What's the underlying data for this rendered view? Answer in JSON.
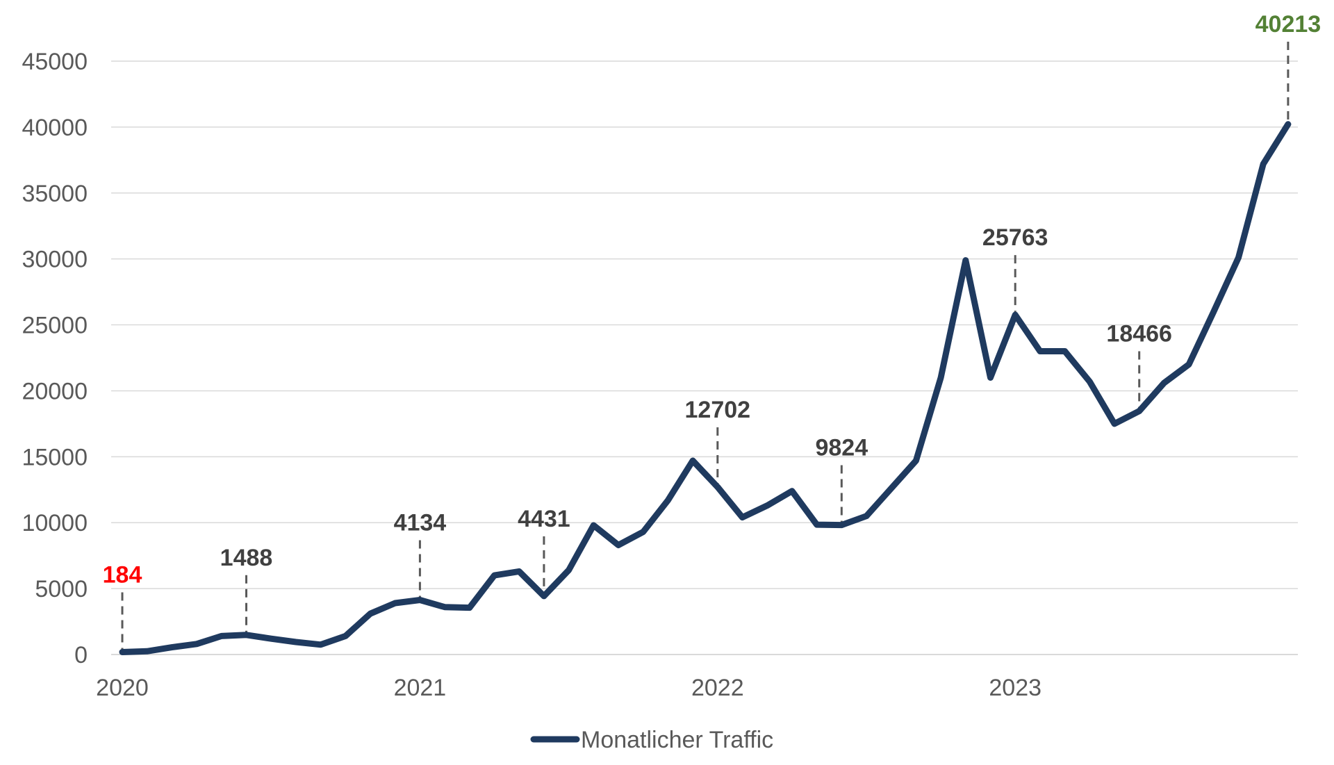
{
  "chart_data": {
    "type": "line",
    "title": "",
    "xlabel": "",
    "ylabel": "",
    "ylim": [
      0,
      45000
    ],
    "y_ticks": [
      "0",
      "5000",
      "10000",
      "15000",
      "20000",
      "25000",
      "30000",
      "35000",
      "40000",
      "45000"
    ],
    "x_ticks": [
      {
        "label": "2020",
        "x": 0
      },
      {
        "label": "2021",
        "x": 12
      },
      {
        "label": "2022",
        "x": 24
      },
      {
        "label": "2023",
        "x": 36
      }
    ],
    "grid": true,
    "legend_position": "bottom",
    "colors": {
      "series": "#1f3a5f",
      "grid": "#d9d9d9",
      "tick_text": "#595959",
      "annotation_default": "#404040",
      "annotation_first": "#ff0000",
      "annotation_last": "#538135",
      "leader": "#595959"
    },
    "series": [
      {
        "name": "Monatlicher Traffic",
        "x": [
          0,
          1,
          2,
          3,
          4,
          5,
          6,
          7,
          8,
          9,
          10,
          11,
          12,
          13,
          14,
          15,
          16,
          17,
          18,
          19,
          20,
          21,
          22,
          23,
          24,
          25,
          26,
          27,
          28,
          29,
          30,
          31,
          32,
          33,
          34,
          35,
          36,
          37,
          38,
          39,
          40,
          41,
          42,
          43,
          44,
          45,
          46,
          47
        ],
        "values": [
          184,
          250,
          550,
          800,
          1400,
          1488,
          1200,
          950,
          750,
          1400,
          3100,
          3900,
          4134,
          3600,
          3550,
          6000,
          6300,
          4431,
          6400,
          9800,
          8300,
          9300,
          11700,
          14700,
          12702,
          10400,
          11300,
          12400,
          9850,
          9824,
          10500,
          12600,
          14700,
          21000,
          29900,
          21000,
          25763,
          23000,
          23000,
          20700,
          17500,
          18466,
          20600,
          22000,
          26000,
          30100,
          37200,
          40213
        ]
      }
    ],
    "annotations": [
      {
        "x": 0,
        "value": 184,
        "label": "184",
        "style": "first"
      },
      {
        "x": 5,
        "value": 1488,
        "label": "1488",
        "style": "default"
      },
      {
        "x": 12,
        "value": 4134,
        "label": "4134",
        "style": "default"
      },
      {
        "x": 17,
        "value": 4431,
        "label": "4431",
        "style": "default"
      },
      {
        "x": 24,
        "value": 12702,
        "label": "12702",
        "style": "default"
      },
      {
        "x": 29,
        "value": 9824,
        "label": "9824",
        "style": "default"
      },
      {
        "x": 36,
        "value": 25763,
        "label": "25763",
        "style": "default"
      },
      {
        "x": 41,
        "value": 18466,
        "label": "18466",
        "style": "default"
      },
      {
        "x": 47,
        "value": 40213,
        "label": "40213",
        "style": "last"
      }
    ]
  }
}
